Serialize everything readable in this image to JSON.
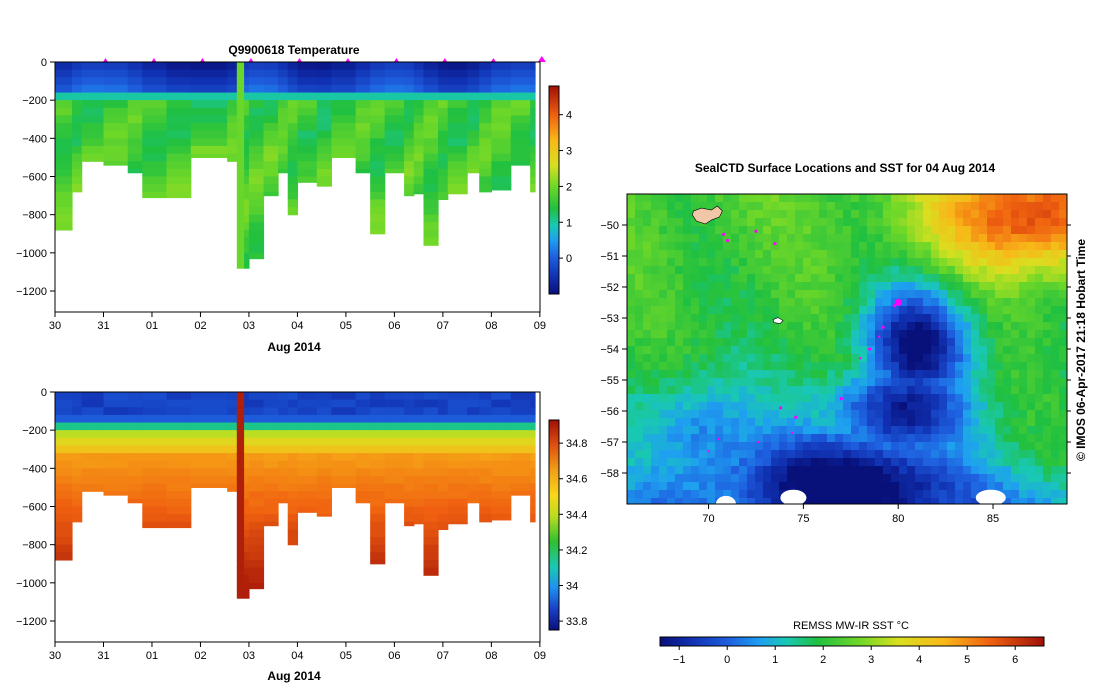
{
  "chart_data": [
    {
      "type": "heatmap",
      "title": "Q9900618  Temperature",
      "xlabel": "Aug 2014",
      "x_tick_labels": [
        "30",
        "31",
        "01",
        "02",
        "03",
        "04",
        "05",
        "06",
        "07",
        "08",
        "09"
      ],
      "y_tick_values": [
        0,
        -200,
        -400,
        -600,
        -800,
        -1000,
        -1200
      ],
      "ylim": [
        -1310,
        0
      ],
      "colorbar_ticks": [
        0,
        1,
        2,
        3,
        4
      ],
      "colorbar_range": [
        -1,
        4.8
      ],
      "profile_markers": [
        "31",
        "01",
        "02",
        "03",
        "04",
        "05",
        "06",
        "07",
        "08",
        "09"
      ],
      "profiles": [
        {
          "day": 30.0,
          "depth": 880
        },
        {
          "day": 30.35,
          "depth": 680
        },
        {
          "day": 30.55,
          "depth": 520
        },
        {
          "day": 31.0,
          "depth": 540
        },
        {
          "day": 31.5,
          "depth": 580
        },
        {
          "day": 31.8,
          "depth": 710
        },
        {
          "day": 32.3,
          "depth": 710
        },
        {
          "day": 32.8,
          "depth": 500
        },
        {
          "day": 33.55,
          "depth": 520
        },
        {
          "day": 33.75,
          "depth": 1080
        },
        {
          "day": 33.9,
          "depth": 1080
        },
        {
          "day": 34.0,
          "depth": 1030
        },
        {
          "day": 34.3,
          "depth": 700
        },
        {
          "day": 34.6,
          "depth": 580
        },
        {
          "day": 34.8,
          "depth": 800
        },
        {
          "day": 35.0,
          "depth": 630
        },
        {
          "day": 35.4,
          "depth": 650
        },
        {
          "day": 35.7,
          "depth": 500
        },
        {
          "day": 36.2,
          "depth": 580
        },
        {
          "day": 36.5,
          "depth": 900
        },
        {
          "day": 36.8,
          "depth": 580
        },
        {
          "day": 37.2,
          "depth": 700
        },
        {
          "day": 37.4,
          "depth": 690
        },
        {
          "day": 37.6,
          "depth": 960
        },
        {
          "day": 37.9,
          "depth": 720
        },
        {
          "day": 38.1,
          "depth": 690
        },
        {
          "day": 38.5,
          "depth": 580
        },
        {
          "day": 38.75,
          "depth": 680
        },
        {
          "day": 39.0,
          "depth": 670
        },
        {
          "day": 39.4,
          "depth": 540
        },
        {
          "day": 39.8,
          "depth": 680
        }
      ]
    },
    {
      "type": "heatmap",
      "title": "",
      "xlabel": "Aug 2014",
      "x_tick_labels": [
        "30",
        "31",
        "01",
        "02",
        "03",
        "04",
        "05",
        "06",
        "07",
        "08",
        "09"
      ],
      "y_tick_values": [
        0,
        -200,
        -400,
        -600,
        -800,
        -1000,
        -1200
      ],
      "ylim": [
        -1310,
        0
      ],
      "colorbar_ticks": [
        33.8,
        34,
        34.2,
        34.4,
        34.6,
        34.8
      ],
      "colorbar_tick_labels": [
        "33.8",
        "34",
        "34.2",
        "34.4",
        "34.6",
        "34.8"
      ],
      "colorbar_range": [
        33.75,
        34.93
      ]
    },
    {
      "type": "heatmap",
      "title": "SealCTD Surface Locations and SST for 04 Aug 2014",
      "x_tick_values": [
        70,
        75,
        80,
        85
      ],
      "y_tick_labels": [
        "-50",
        "-51",
        "-52",
        "-53",
        "-54",
        "-55",
        "-56",
        "-57",
        "-58"
      ],
      "xlim": [
        65.7,
        88.9
      ],
      "ylim": [
        -59.0,
        -49.0
      ],
      "colorbar_label": "REMSS MW-IR SST °C",
      "colorbar_ticks": [
        -1,
        0,
        1,
        2,
        3,
        4,
        5,
        6
      ],
      "colorbar_range": [
        -1.4,
        6.6
      ],
      "credit": "© IMOS 06-Apr-2017 21:18 Hobart Time"
    }
  ]
}
